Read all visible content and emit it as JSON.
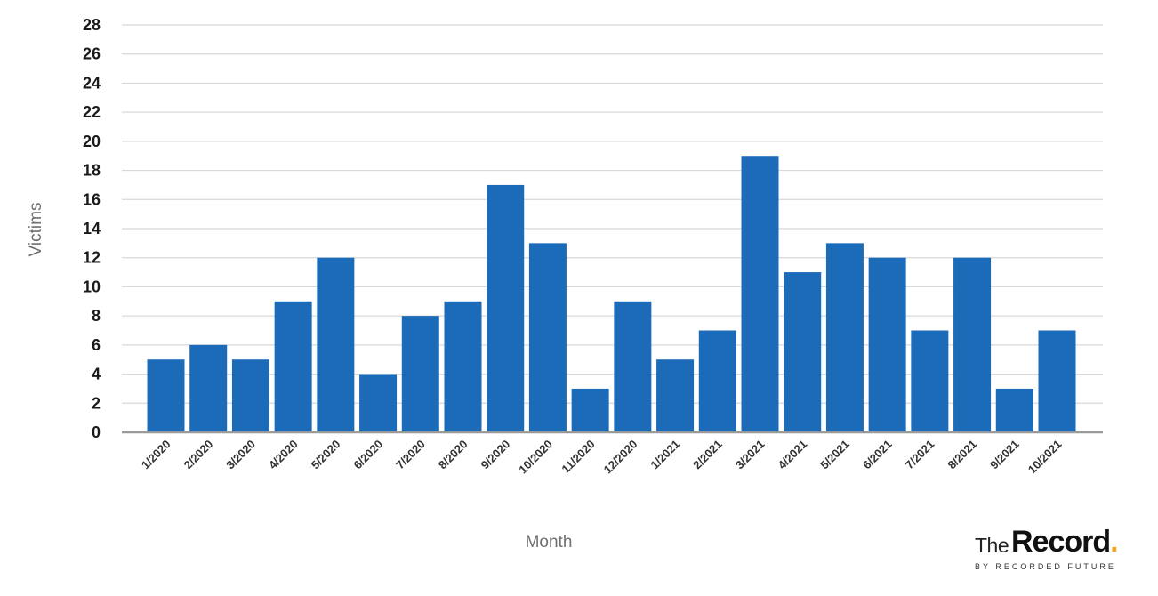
{
  "chart_data": {
    "type": "bar",
    "title": "",
    "xlabel": "Month",
    "ylabel": "Victims",
    "ylim": [
      0,
      28
    ],
    "yticks": [
      0,
      2,
      4,
      6,
      8,
      10,
      12,
      14,
      16,
      18,
      20,
      22,
      24,
      26,
      28
    ],
    "grid": true,
    "categories": [
      "1/2020",
      "2/2020",
      "3/2020",
      "4/2020",
      "5/2020",
      "6/2020",
      "7/2020",
      "8/2020",
      "9/2020",
      "10/2020",
      "11/2020",
      "12/2020",
      "1/2021",
      "2/2021",
      "3/2021",
      "4/2021",
      "5/2021",
      "6/2021",
      "7/2021",
      "8/2021",
      "9/2021",
      "10/2021"
    ],
    "values": [
      5,
      6,
      5,
      9,
      12,
      4,
      8,
      9,
      17,
      13,
      3,
      9,
      5,
      7,
      19,
      11,
      13,
      12,
      7,
      12,
      3,
      7
    ],
    "bar_color": "#1c6bb9",
    "grid_color": "#d8d8d8",
    "axis_color": "#9a9a9a"
  },
  "logo": {
    "the": "The",
    "record": "Record",
    "dot": ".",
    "subtitle": "BY RECORDED FUTURE",
    "accent_color": "#f5a623"
  }
}
